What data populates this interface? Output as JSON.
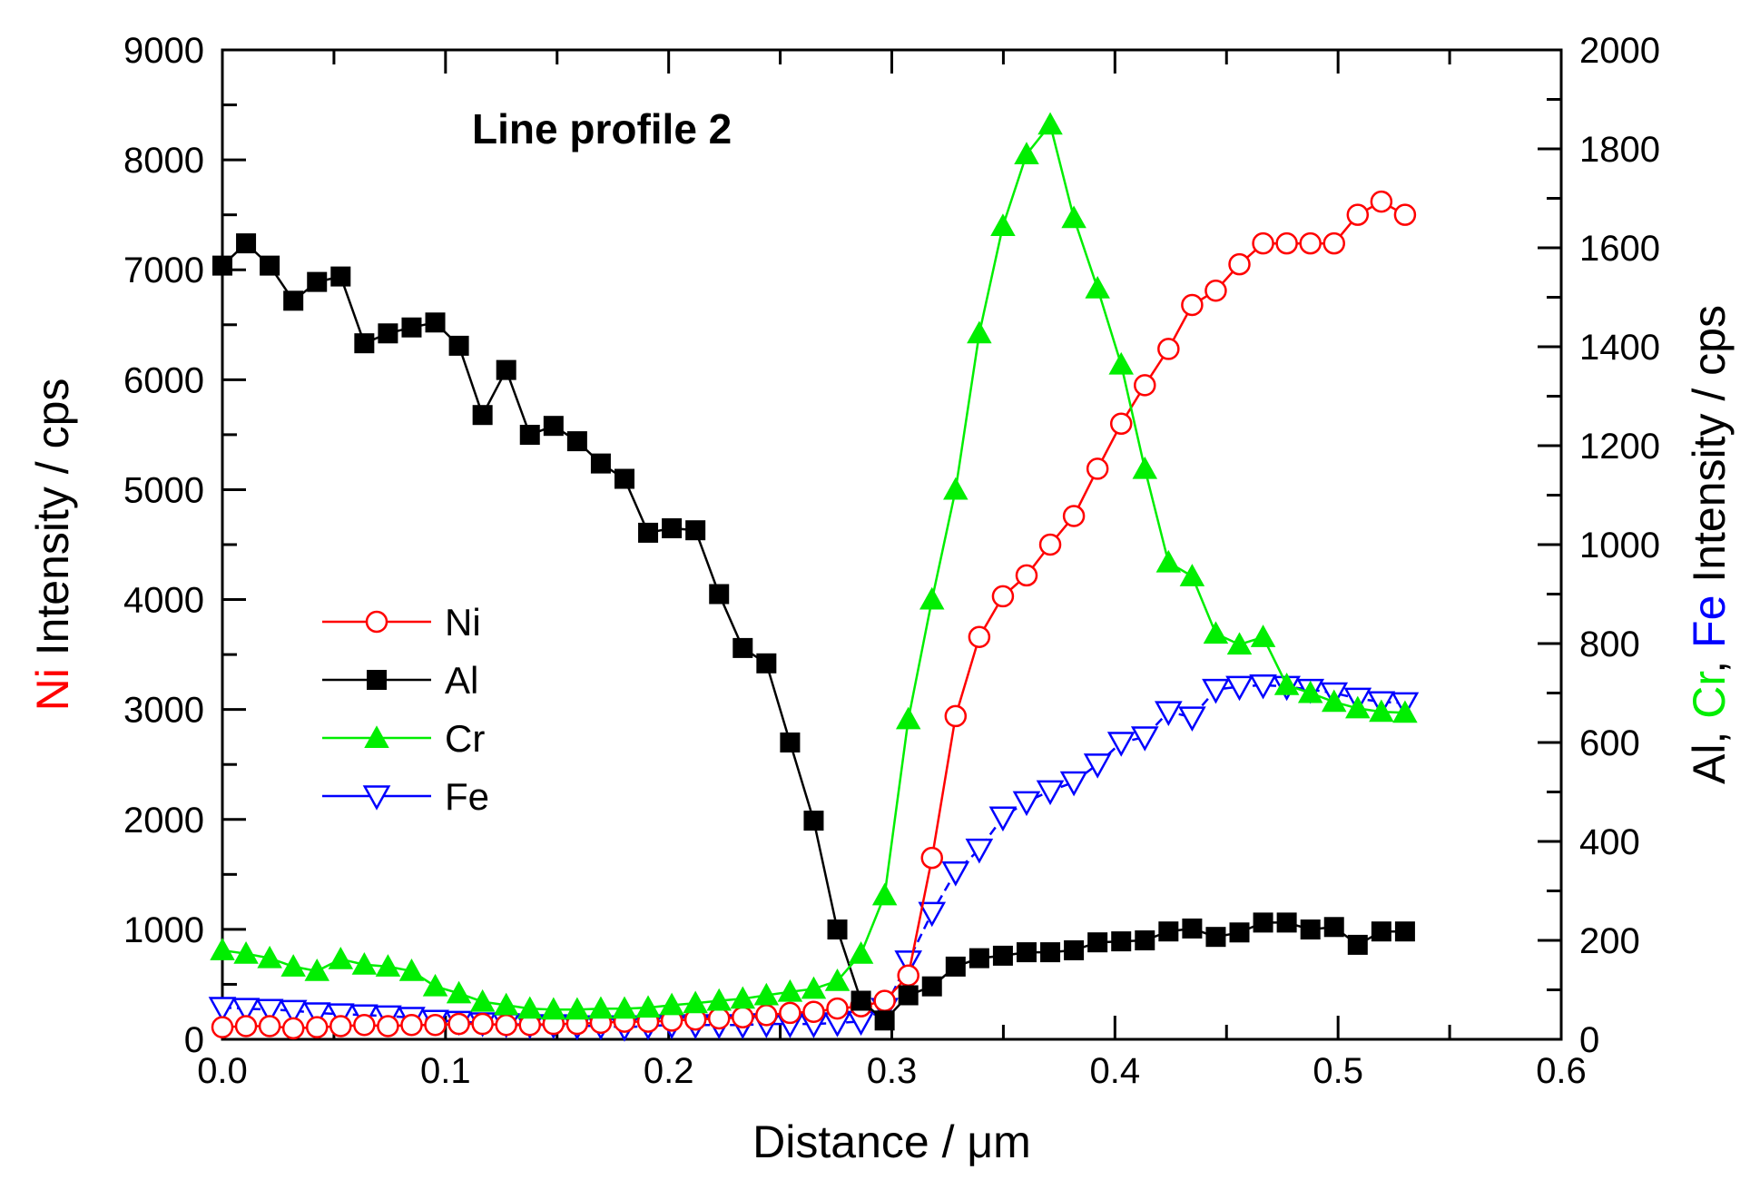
{
  "chart_data": {
    "type": "line",
    "title": "Line profile 2",
    "xlabel": "Distance / μm",
    "ylabel_left": {
      "parts": [
        {
          "text": "Ni",
          "color": "#ff0000"
        },
        {
          "text": " Intensity / cps",
          "color": "#000000"
        }
      ]
    },
    "ylabel_right": {
      "parts": [
        {
          "text": "Al, ",
          "color": "#000000"
        },
        {
          "text": "Cr",
          "color": "#00ee00"
        },
        {
          "text": ", ",
          "color": "#000000"
        },
        {
          "text": "Fe",
          "color": "#0000ff"
        },
        {
          "text": " Intensity / cps",
          "color": "#000000"
        }
      ]
    },
    "xlim": [
      0.0,
      0.6
    ],
    "ylim_left": [
      0,
      9000
    ],
    "ylim_right": [
      0,
      2000
    ],
    "x_ticks": [
      "0.0",
      "0.1",
      "0.2",
      "0.3",
      "0.4",
      "0.5",
      "0.6"
    ],
    "y_ticks_left": [
      "0",
      "1000",
      "2000",
      "3000",
      "4000",
      "5000",
      "6000",
      "7000",
      "8000",
      "9000"
    ],
    "y_ticks_right": [
      "0",
      "200",
      "400",
      "600",
      "800",
      "1000",
      "1200",
      "1400",
      "1600",
      "1800",
      "2000"
    ],
    "legend_position": "middle-left",
    "x": [
      0.0,
      0.0106,
      0.0212,
      0.0318,
      0.0424,
      0.053,
      0.0636,
      0.0742,
      0.0848,
      0.0954,
      0.106,
      0.1166,
      0.1272,
      0.1378,
      0.1484,
      0.159,
      0.1696,
      0.1802,
      0.1908,
      0.2014,
      0.212,
      0.2226,
      0.2332,
      0.2438,
      0.2544,
      0.265,
      0.2756,
      0.2862,
      0.2968,
      0.3074,
      0.318,
      0.3286,
      0.3392,
      0.3498,
      0.3604,
      0.371,
      0.3816,
      0.3922,
      0.4028,
      0.4134,
      0.424,
      0.4346,
      0.4452,
      0.4558,
      0.4664,
      0.477,
      0.4876,
      0.4982,
      0.5088,
      0.5194,
      0.53
    ],
    "series": [
      {
        "name": "Ni",
        "axis": "left",
        "color": "#ff0000",
        "marker": "circle-open",
        "values": [
          110,
          120,
          120,
          100,
          110,
          120,
          130,
          120,
          130,
          130,
          140,
          140,
          130,
          130,
          140,
          140,
          150,
          160,
          160,
          170,
          180,
          190,
          200,
          220,
          240,
          250,
          280,
          300,
          350,
          580,
          1650,
          2940,
          3660,
          4030,
          4220,
          4500,
          4760,
          5190,
          5600,
          5950,
          6280,
          6680,
          6810,
          7050,
          7240,
          7240,
          7240,
          7240,
          7500,
          7620,
          7500
        ]
      },
      {
        "name": "Al",
        "axis": "right",
        "color": "#000000",
        "marker": "square-filled",
        "values": [
          1564,
          1609,
          1564,
          1493,
          1531,
          1542,
          1407,
          1427,
          1439,
          1449,
          1402,
          1262,
          1353,
          1222,
          1240,
          1209,
          1164,
          1133,
          1024,
          1033,
          1029,
          900,
          791,
          760,
          600,
          442,
          222,
          78,
          38,
          89,
          107,
          147,
          164,
          169,
          176,
          176,
          180,
          196,
          198,
          200,
          218,
          224,
          207,
          216,
          236,
          236,
          222,
          227,
          191,
          218,
          218
        ]
      },
      {
        "name": "Cr",
        "axis": "right",
        "color": "#00ee00",
        "marker": "triangle-up-filled",
        "values": [
          180,
          173,
          164,
          147,
          138,
          162,
          151,
          147,
          138,
          107,
          93,
          76,
          69,
          62,
          60,
          60,
          62,
          62,
          64,
          69,
          73,
          78,
          82,
          89,
          96,
          102,
          118,
          173,
          291,
          647,
          889,
          1111,
          1427,
          1644,
          1789,
          1849,
          1660,
          1518,
          1364,
          1153,
          964,
          936,
          820,
          798,
          813,
          716,
          700,
          682,
          669,
          662,
          660
        ]
      },
      {
        "name": "Fe",
        "axis": "right",
        "color": "#0000ff",
        "marker": "triangle-down-open",
        "values": [
          64,
          62,
          60,
          58,
          53,
          51,
          49,
          47,
          44,
          38,
          36,
          33,
          31,
          29,
          29,
          27,
          27,
          24,
          27,
          29,
          29,
          29,
          29,
          31,
          31,
          31,
          33,
          36,
          62,
          158,
          256,
          338,
          384,
          449,
          480,
          502,
          520,
          556,
          600,
          611,
          662,
          651,
          707,
          713,
          716,
          713,
          707,
          700,
          689,
          682,
          680
        ]
      }
    ]
  }
}
